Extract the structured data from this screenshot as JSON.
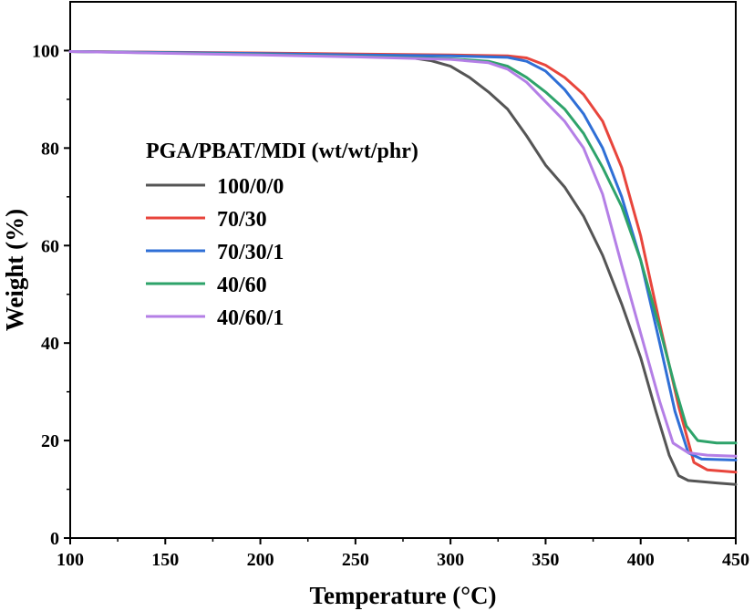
{
  "chart_data": {
    "type": "line",
    "title": "",
    "xlabel": "Temperature (°C)",
    "ylabel": "Weight (%)",
    "xlim": [
      100,
      450
    ],
    "ylim": [
      0,
      110
    ],
    "xticks": [
      100,
      150,
      200,
      250,
      300,
      350,
      400,
      450
    ],
    "yticks": [
      0,
      20,
      40,
      60,
      80,
      100
    ],
    "grid": false,
    "legend": {
      "title": "PGA/PBAT/MDI (wt/wt/phr)",
      "position": "middle-left"
    },
    "series": [
      {
        "name": "100/0/0",
        "color": "#555555",
        "points": [
          [
            100,
            99.8
          ],
          [
            200,
            99.4
          ],
          [
            250,
            99.0
          ],
          [
            270,
            98.8
          ],
          [
            280,
            98.5
          ],
          [
            290,
            97.9
          ],
          [
            300,
            96.8
          ],
          [
            310,
            94.5
          ],
          [
            320,
            91.5
          ],
          [
            330,
            88.0
          ],
          [
            340,
            82.5
          ],
          [
            350,
            76.5
          ],
          [
            360,
            72.0
          ],
          [
            370,
            66.0
          ],
          [
            380,
            58.0
          ],
          [
            390,
            48.0
          ],
          [
            400,
            37.0
          ],
          [
            408,
            26.0
          ],
          [
            415,
            17.0
          ],
          [
            420,
            12.8
          ],
          [
            425,
            11.8
          ],
          [
            440,
            11.3
          ],
          [
            450,
            11.0
          ]
        ]
      },
      {
        "name": "70/30",
        "color": "#e8453c",
        "points": [
          [
            100,
            99.8
          ],
          [
            200,
            99.5
          ],
          [
            250,
            99.3
          ],
          [
            300,
            99.1
          ],
          [
            330,
            98.9
          ],
          [
            340,
            98.5
          ],
          [
            350,
            97.0
          ],
          [
            360,
            94.5
          ],
          [
            370,
            91.0
          ],
          [
            380,
            85.5
          ],
          [
            390,
            76.0
          ],
          [
            400,
            62.0
          ],
          [
            410,
            44.0
          ],
          [
            420,
            27.0
          ],
          [
            428,
            15.5
          ],
          [
            435,
            14.0
          ],
          [
            450,
            13.5
          ]
        ]
      },
      {
        "name": "70/30/1",
        "color": "#2f6fd6",
        "points": [
          [
            100,
            99.8
          ],
          [
            200,
            99.4
          ],
          [
            250,
            99.1
          ],
          [
            300,
            98.9
          ],
          [
            330,
            98.6
          ],
          [
            340,
            97.8
          ],
          [
            350,
            95.8
          ],
          [
            360,
            92.0
          ],
          [
            370,
            87.0
          ],
          [
            380,
            80.0
          ],
          [
            390,
            70.0
          ],
          [
            400,
            57.0
          ],
          [
            410,
            40.0
          ],
          [
            418,
            26.0
          ],
          [
            425,
            17.5
          ],
          [
            432,
            16.2
          ],
          [
            450,
            16.0
          ]
        ]
      },
      {
        "name": "40/60",
        "color": "#2ea36a",
        "points": [
          [
            100,
            99.8
          ],
          [
            200,
            99.2
          ],
          [
            250,
            98.8
          ],
          [
            300,
            98.3
          ],
          [
            320,
            97.8
          ],
          [
            330,
            96.8
          ],
          [
            340,
            94.5
          ],
          [
            350,
            91.5
          ],
          [
            360,
            88.0
          ],
          [
            370,
            83.0
          ],
          [
            380,
            76.0
          ],
          [
            390,
            68.0
          ],
          [
            400,
            57.0
          ],
          [
            410,
            43.0
          ],
          [
            418,
            31.0
          ],
          [
            424,
            23.0
          ],
          [
            430,
            20.0
          ],
          [
            440,
            19.5
          ],
          [
            450,
            19.5
          ]
        ]
      },
      {
        "name": "40/60/1",
        "color": "#b47fe6",
        "points": [
          [
            100,
            99.8
          ],
          [
            200,
            99.1
          ],
          [
            250,
            98.7
          ],
          [
            300,
            98.2
          ],
          [
            320,
            97.5
          ],
          [
            330,
            96.2
          ],
          [
            340,
            93.5
          ],
          [
            350,
            89.5
          ],
          [
            360,
            85.5
          ],
          [
            370,
            80.0
          ],
          [
            380,
            70.5
          ],
          [
            390,
            56.0
          ],
          [
            400,
            42.0
          ],
          [
            410,
            28.0
          ],
          [
            417,
            19.5
          ],
          [
            425,
            17.5
          ],
          [
            435,
            17.0
          ],
          [
            450,
            16.8
          ]
        ]
      }
    ]
  }
}
